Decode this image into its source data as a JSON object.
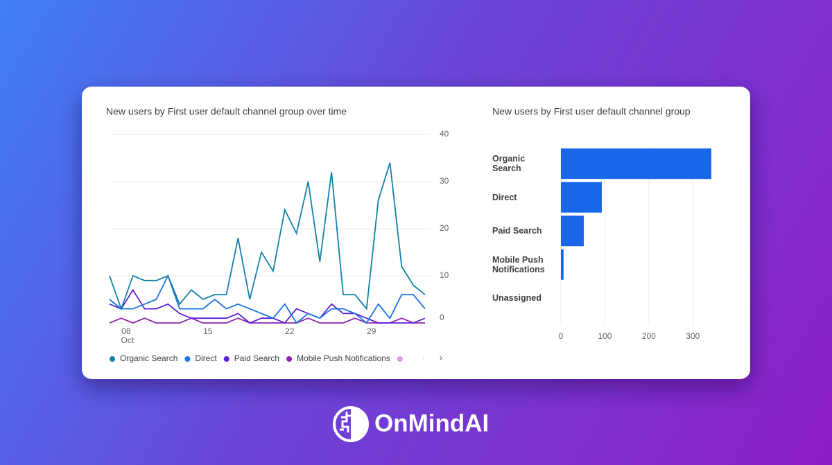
{
  "chart_data": [
    {
      "type": "line",
      "title": "New users by First user default channel group over time",
      "categories": [
        null,
        "08",
        null,
        null,
        null,
        null,
        null,
        null,
        "15",
        null,
        null,
        null,
        null,
        null,
        null,
        "22",
        null,
        null,
        null,
        null,
        null,
        null,
        "29",
        null,
        null,
        null,
        null,
        null
      ],
      "x_month_label": "Oct",
      "ylim": [
        0,
        40
      ],
      "yticks": [
        0,
        10,
        20,
        30,
        40
      ],
      "grid": true,
      "y_axis_side": "right",
      "legend": "bottom",
      "series": [
        {
          "name": "Organic Search",
          "color": "#1280a8",
          "values": [
            10,
            3,
            10,
            9,
            9,
            10,
            4,
            7,
            5,
            6,
            6,
            18,
            5,
            15,
            11,
            24,
            19,
            30,
            13,
            32,
            6,
            6,
            3,
            26,
            34,
            12,
            8,
            6
          ]
        },
        {
          "name": "Direct",
          "color": "#1a73e8",
          "values": [
            5,
            3,
            3,
            4,
            5,
            10,
            3,
            3,
            3,
            5,
            3,
            4,
            3,
            2,
            1,
            4,
            0,
            2,
            1,
            3,
            3,
            2,
            0,
            4,
            1,
            6,
            6,
            3
          ]
        },
        {
          "name": "Paid Search",
          "color": "#5b1fd6",
          "values": [
            4,
            3,
            7,
            3,
            3,
            4,
            2,
            1,
            1,
            1,
            1,
            2,
            0,
            1,
            1,
            0,
            3,
            2,
            1,
            4,
            2,
            2,
            1,
            0,
            0,
            0,
            0,
            1
          ]
        },
        {
          "name": "Mobile Push Notifications",
          "color": "#8e24aa",
          "values": [
            0,
            1,
            0,
            1,
            0,
            0,
            0,
            1,
            0,
            0,
            0,
            1,
            0,
            0,
            0,
            0,
            0,
            1,
            0,
            0,
            0,
            1,
            0,
            0,
            0,
            1,
            0,
            0
          ]
        }
      ]
    },
    {
      "type": "hbar",
      "title": "New users by First user default channel group",
      "categories": [
        "Organic Search",
        "Direct",
        "Paid Search",
        "Mobile Push Notifications",
        "Unassigned"
      ],
      "values": [
        342,
        93,
        52,
        6,
        0
      ],
      "color": "#1a66e8",
      "xlim": [
        0,
        350
      ],
      "xticks": [
        0,
        100,
        200,
        300
      ],
      "grid": true
    }
  ],
  "brand": "OnMindAI"
}
